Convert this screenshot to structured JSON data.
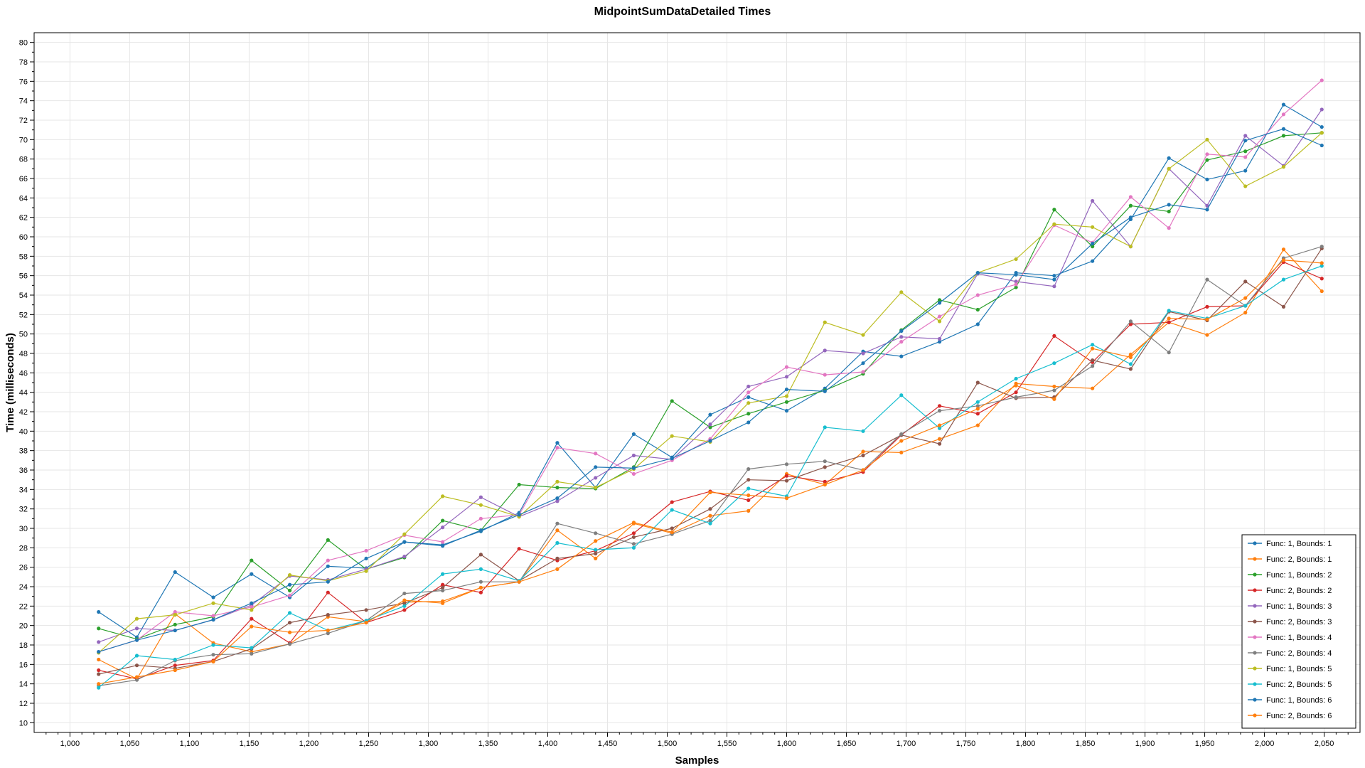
{
  "chart_data": {
    "type": "line",
    "title": "MidpointSumDataDetailed Times",
    "xlabel": "Samples",
    "ylabel": "Time (milliseconds)",
    "xlim": [
      970,
      2080
    ],
    "ylim": [
      9,
      81
    ],
    "x_ticks": [
      1000,
      1050,
      1100,
      1150,
      1200,
      1250,
      1300,
      1350,
      1400,
      1450,
      1500,
      1550,
      1600,
      1650,
      1700,
      1750,
      1800,
      1850,
      1900,
      1950,
      2000,
      2050
    ],
    "y_ticks": [
      10,
      12,
      14,
      16,
      18,
      20,
      22,
      24,
      26,
      28,
      30,
      32,
      34,
      36,
      38,
      40,
      42,
      44,
      46,
      48,
      50,
      52,
      54,
      56,
      58,
      60,
      62,
      64,
      66,
      68,
      70,
      72,
      74,
      76,
      78,
      80
    ],
    "grid": true,
    "legend_position": "bottom-right",
    "x": [
      1024,
      1056,
      1088,
      1120,
      1152,
      1184,
      1216,
      1248,
      1280,
      1312,
      1344,
      1376,
      1408,
      1440,
      1472,
      1504,
      1536,
      1568,
      1600,
      1632,
      1664,
      1696,
      1728,
      1760,
      1792,
      1824,
      1856,
      1888,
      1920,
      1952,
      1984,
      2016,
      2048
    ],
    "series": [
      {
        "name": "Func: 1, Bounds: 1",
        "color": "#1f77b4",
        "values": [
          21.4,
          18.8,
          25.5,
          22.9,
          25.3,
          22.9,
          26.1,
          25.9,
          28.6,
          28.3,
          29.7,
          31.6,
          38.8,
          34.2,
          39.7,
          37.3,
          41.7,
          43.5,
          42.1,
          44.4,
          48.2,
          47.7,
          49.2,
          51.0,
          56.3,
          56.0,
          57.5,
          61.8,
          68.1,
          65.9,
          66.8,
          73.6,
          71.3
        ]
      },
      {
        "name": "Func: 2, Bounds: 1",
        "color": "#ff7f0e",
        "values": [
          16.5,
          14.5,
          21.2,
          18.2,
          17.3,
          18.1,
          20.9,
          20.4,
          22.4,
          22.5,
          23.9,
          24.5,
          29.8,
          26.9,
          30.5,
          29.5,
          31.3,
          31.8,
          35.6,
          34.5,
          37.9,
          37.8,
          39.2,
          40.6,
          44.9,
          44.6,
          44.4,
          47.9,
          51.2,
          49.9,
          52.2,
          58.7,
          54.4
        ]
      },
      {
        "name": "Func: 1, Bounds: 2",
        "color": "#2ca02c",
        "values": [
          19.7,
          18.6,
          20.1,
          20.9,
          26.7,
          23.6,
          28.8,
          25.8,
          27.0,
          30.8,
          29.8,
          34.5,
          34.2,
          34.1,
          36.3,
          43.1,
          40.4,
          41.8,
          43.0,
          44.2,
          45.9,
          50.4,
          53.5,
          52.5,
          54.8,
          62.8,
          59.0,
          63.2,
          62.6,
          67.9,
          68.8,
          70.4,
          70.7
        ]
      },
      {
        "name": "Func: 2, Bounds: 2",
        "color": "#d62728",
        "values": [
          15.4,
          14.5,
          15.9,
          16.4,
          20.7,
          18.2,
          23.4,
          20.3,
          21.6,
          24.2,
          23.4,
          27.9,
          26.7,
          27.7,
          29.5,
          32.7,
          33.8,
          32.9,
          35.4,
          34.8,
          35.8,
          39.6,
          42.6,
          41.8,
          44.0,
          49.8,
          47.1,
          51.0,
          51.2,
          52.8,
          52.9,
          57.4,
          55.7
        ]
      },
      {
        "name": "Func: 1, Bounds: 3",
        "color": "#9467bd",
        "values": [
          18.3,
          19.7,
          19.5,
          20.6,
          22.1,
          25.1,
          24.7,
          25.8,
          27.1,
          30.1,
          33.2,
          31.2,
          32.8,
          35.2,
          37.5,
          37.1,
          40.7,
          44.6,
          45.6,
          48.3,
          48.0,
          49.7,
          49.5,
          56.2,
          55.4,
          54.9,
          63.7,
          59.0,
          67.0,
          63.2,
          70.4,
          67.3,
          73.1
        ]
      },
      {
        "name": "Func: 2, Bounds: 3",
        "color": "#8c564b",
        "values": [
          15.0,
          15.9,
          15.6,
          16.3,
          17.6,
          20.3,
          21.1,
          21.6,
          22.3,
          23.9,
          27.3,
          24.6,
          26.9,
          27.4,
          29.1,
          30.0,
          32.0,
          35.0,
          34.9,
          36.3,
          37.5,
          39.6,
          38.7,
          45.0,
          43.4,
          43.5,
          47.3,
          46.4,
          52.3,
          51.4,
          55.4,
          52.8,
          58.8
        ]
      },
      {
        "name": "Func: 1, Bounds: 4",
        "color": "#e377c2",
        "values": [
          17.3,
          18.5,
          21.4,
          21.0,
          21.9,
          23.1,
          26.7,
          27.7,
          29.3,
          28.6,
          31.0,
          31.4,
          38.3,
          37.7,
          35.6,
          37.0,
          39.2,
          44.0,
          46.6,
          45.8,
          46.1,
          49.2,
          51.8,
          54.0,
          55.1,
          61.2,
          59.4,
          64.1,
          60.9,
          68.5,
          68.2,
          72.6,
          76.1
        ]
      },
      {
        "name": "Func: 2, Bounds: 4",
        "color": "#7f7f7f",
        "values": [
          13.8,
          14.4,
          16.4,
          17.0,
          17.1,
          18.1,
          19.2,
          20.5,
          23.3,
          23.6,
          24.5,
          24.5,
          30.5,
          29.5,
          28.4,
          29.4,
          30.8,
          36.1,
          36.6,
          36.9,
          36.0,
          39.7,
          42.1,
          42.6,
          43.5,
          44.2,
          46.7,
          51.3,
          48.1,
          55.6,
          52.9,
          57.8,
          59.0
        ]
      },
      {
        "name": "Func: 1, Bounds: 5",
        "color": "#bcbd22",
        "values": [
          17.2,
          20.7,
          21.1,
          22.3,
          21.6,
          25.2,
          24.6,
          25.6,
          29.4,
          33.3,
          32.4,
          31.2,
          34.8,
          34.2,
          36.1,
          39.5,
          38.9,
          42.9,
          43.6,
          51.2,
          49.9,
          54.3,
          51.3,
          56.3,
          57.7,
          61.3,
          61.0,
          59.0,
          67.0,
          70.0,
          65.2,
          67.2,
          70.7
        ]
      },
      {
        "name": "Func: 2, Bounds: 5",
        "color": "#17becf",
        "values": [
          13.6,
          16.9,
          16.5,
          18.0,
          17.7,
          21.3,
          19.5,
          20.5,
          22.0,
          25.3,
          25.8,
          24.6,
          28.5,
          27.8,
          28.0,
          31.9,
          30.5,
          34.1,
          33.3,
          40.4,
          40.0,
          43.7,
          40.3,
          43.0,
          45.4,
          47.0,
          48.9,
          46.9,
          52.4,
          51.6,
          52.9,
          55.6,
          57.0
        ]
      },
      {
        "name": "Func: 1, Bounds: 6",
        "color": "#1f77b4",
        "values": [
          17.3,
          18.5,
          19.5,
          20.6,
          22.3,
          24.2,
          24.5,
          26.9,
          28.6,
          28.2,
          29.8,
          31.4,
          33.1,
          36.3,
          36.2,
          37.2,
          39.0,
          40.9,
          44.3,
          44.1,
          47.0,
          50.3,
          53.2,
          56.3,
          56.1,
          55.6,
          59.3,
          62.0,
          63.3,
          62.8,
          69.9,
          71.1,
          69.4
        ]
      },
      {
        "name": "Func: 2, Bounds: 6",
        "color": "#ff7f0e",
        "values": [
          14.0,
          14.7,
          15.4,
          16.3,
          19.9,
          19.3,
          19.5,
          20.3,
          22.6,
          22.3,
          23.9,
          24.5,
          25.8,
          28.7,
          30.6,
          29.6,
          33.7,
          33.4,
          33.1,
          34.5,
          36.0,
          39.0,
          40.6,
          42.3,
          44.7,
          43.3,
          48.5,
          47.6,
          51.6,
          51.5,
          53.7,
          57.6,
          57.3
        ]
      }
    ]
  }
}
